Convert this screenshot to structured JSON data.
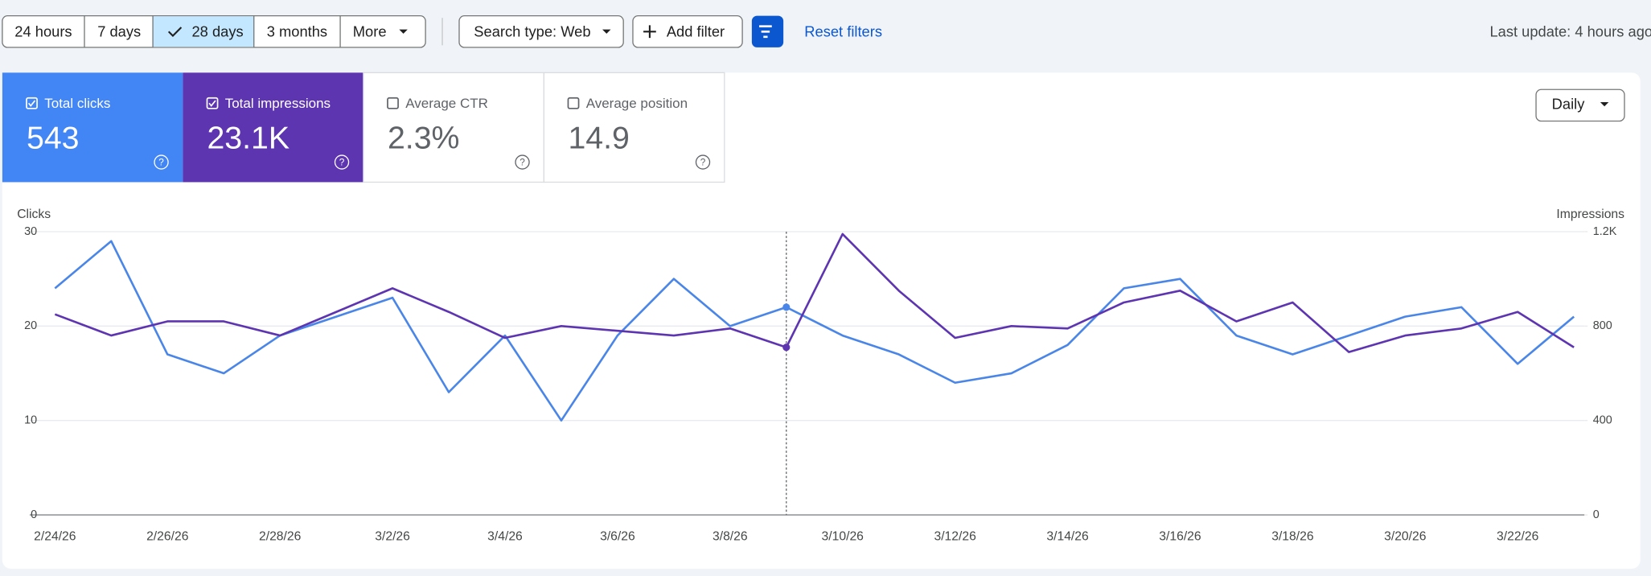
{
  "toolbar": {
    "ranges": [
      "24 hours",
      "7 days",
      "28 days",
      "3 months",
      "More"
    ],
    "search_type": "Search type: Web",
    "add_filter": "Add filter",
    "reset_filters": "Reset filters",
    "last_update": "Last update: 4 hours ago"
  },
  "metrics": [
    {
      "label": "Total clicks",
      "value": "543"
    },
    {
      "label": "Total impressions",
      "value": "23.1K"
    },
    {
      "label": "Average CTR",
      "value": "2.3%"
    },
    {
      "label": "Average position",
      "value": "14.9"
    }
  ],
  "granularity": "Daily",
  "chart_data": {
    "type": "line",
    "y_label": "Clicks",
    "y2_label": "Impressions",
    "categories": [
      "2/24/26",
      null,
      "2/26/26",
      null,
      "2/28/26",
      null,
      "3/2/26",
      null,
      "3/4/26",
      null,
      "3/6/26",
      null,
      "3/8/26",
      null,
      "3/10/26",
      null,
      "3/12/26",
      null,
      "3/14/26",
      null,
      "3/16/26",
      null,
      "3/18/26",
      null,
      "3/20/26",
      null,
      "3/22/26",
      null
    ],
    "series": [
      {
        "name": "Clicks",
        "color": "#4a86e8",
        "values": [
          24,
          29,
          17,
          15,
          19,
          21,
          23,
          13,
          19,
          10,
          19,
          25,
          20,
          22,
          19,
          17,
          14,
          15,
          18,
          24,
          25,
          19,
          17,
          19,
          21,
          22,
          16,
          21
        ]
      },
      {
        "name": "Impressions",
        "color": "#5e35b1",
        "axis": "y2",
        "values": [
          850,
          760,
          820,
          820,
          760,
          860,
          960,
          860,
          750,
          800,
          780,
          760,
          790,
          710,
          1190,
          950,
          750,
          800,
          790,
          900,
          950,
          820,
          900,
          690,
          760,
          790,
          860,
          710
        ]
      }
    ],
    "ylim": [
      0,
      30
    ],
    "yticks": [
      0,
      10,
      20,
      30
    ],
    "y2lim": [
      0,
      1200
    ],
    "y2ticks": [
      0,
      400,
      800,
      {
        "value": 1200,
        "label": "1.2K"
      }
    ],
    "grid": true
  }
}
